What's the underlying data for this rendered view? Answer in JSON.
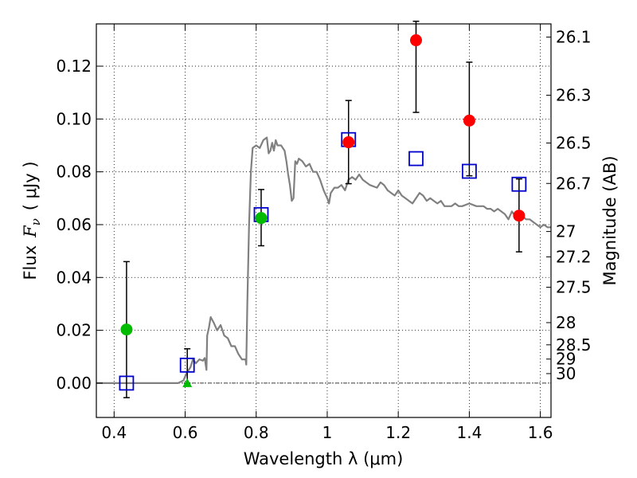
{
  "chart_data": {
    "type": "scatter",
    "title": "",
    "xlabel": "Wavelength  λ (μm)",
    "ylabel_left": {
      "prefix": "Flux",
      "symbol": "F",
      "subscript": "ν",
      "unit": "( μJy )"
    },
    "ylabel_right": "Magnitude (AB)",
    "xlim": [
      0.35,
      1.63
    ],
    "ylim": [
      -0.013,
      0.136
    ],
    "grid": true,
    "x_ticks": [
      0.4,
      0.6,
      0.8,
      1.0,
      1.2,
      1.4,
      1.6
    ],
    "x_tick_labels": [
      "0.4",
      "0.6",
      "0.8",
      "1",
      "1.2",
      "1.4",
      "1.6"
    ],
    "y_ticks": [
      0.0,
      0.02,
      0.04,
      0.06,
      0.08,
      0.1,
      0.12
    ],
    "y_tick_labels": [
      "0.00",
      "0.02",
      "0.04",
      "0.06",
      "0.08",
      "0.10",
      "0.12"
    ],
    "magnitude_ticks": [
      {
        "label": "26.1",
        "flux": 0.131
      },
      {
        "label": "26.3",
        "flux": 0.109
      },
      {
        "label": "26.5",
        "flux": 0.0909
      },
      {
        "label": "26.7",
        "flux": 0.0756
      },
      {
        "label": "27",
        "flux": 0.0574
      },
      {
        "label": "27.2",
        "flux": 0.0478
      },
      {
        "label": "27.5",
        "flux": 0.0363
      },
      {
        "label": "28",
        "flux": 0.0229
      },
      {
        "label": "28.5",
        "flux": 0.0145
      },
      {
        "label": "29",
        "flux": 0.0091
      },
      {
        "label": "30",
        "flux": 0.0036
      }
    ],
    "series": [
      {
        "name": "SED model",
        "kind": "line",
        "color": "#808080",
        "points": [
          [
            0.35,
            0.0
          ],
          [
            0.58,
            0.0
          ],
          [
            0.595,
            0.001
          ],
          [
            0.605,
            0.004
          ],
          [
            0.615,
            0.006
          ],
          [
            0.622,
            0.009
          ],
          [
            0.63,
            0.0075
          ],
          [
            0.64,
            0.009
          ],
          [
            0.65,
            0.0085
          ],
          [
            0.655,
            0.0095
          ],
          [
            0.66,
            0.005
          ],
          [
            0.662,
            0.018
          ],
          [
            0.667,
            0.021
          ],
          [
            0.672,
            0.025
          ],
          [
            0.68,
            0.023
          ],
          [
            0.69,
            0.02
          ],
          [
            0.7,
            0.022
          ],
          [
            0.71,
            0.018
          ],
          [
            0.72,
            0.017
          ],
          [
            0.73,
            0.014
          ],
          [
            0.74,
            0.014
          ],
          [
            0.75,
            0.011
          ],
          [
            0.76,
            0.009
          ],
          [
            0.77,
            0.009
          ],
          [
            0.772,
            0.007
          ],
          [
            0.775,
            0.03
          ],
          [
            0.78,
            0.06
          ],
          [
            0.785,
            0.08
          ],
          [
            0.79,
            0.089
          ],
          [
            0.8,
            0.09
          ],
          [
            0.81,
            0.089
          ],
          [
            0.82,
            0.092
          ],
          [
            0.83,
            0.093
          ],
          [
            0.835,
            0.087
          ],
          [
            0.84,
            0.088
          ],
          [
            0.845,
            0.091
          ],
          [
            0.85,
            0.088
          ],
          [
            0.855,
            0.092
          ],
          [
            0.86,
            0.09
          ],
          [
            0.87,
            0.09
          ],
          [
            0.88,
            0.088
          ],
          [
            0.885,
            0.084
          ],
          [
            0.89,
            0.079
          ],
          [
            0.895,
            0.075
          ],
          [
            0.9,
            0.069
          ],
          [
            0.905,
            0.07
          ],
          [
            0.91,
            0.084
          ],
          [
            0.915,
            0.083
          ],
          [
            0.92,
            0.085
          ],
          [
            0.93,
            0.084
          ],
          [
            0.94,
            0.082
          ],
          [
            0.95,
            0.083
          ],
          [
            0.96,
            0.08
          ],
          [
            0.97,
            0.08
          ],
          [
            0.98,
            0.077
          ],
          [
            0.99,
            0.073
          ],
          [
            1.0,
            0.07
          ],
          [
            1.005,
            0.068
          ],
          [
            1.01,
            0.072
          ],
          [
            1.02,
            0.074
          ],
          [
            1.03,
            0.074
          ],
          [
            1.04,
            0.075
          ],
          [
            1.05,
            0.073
          ],
          [
            1.06,
            0.077
          ],
          [
            1.07,
            0.078
          ],
          [
            1.08,
            0.077
          ],
          [
            1.09,
            0.079
          ],
          [
            1.1,
            0.077
          ],
          [
            1.12,
            0.075
          ],
          [
            1.14,
            0.074
          ],
          [
            1.15,
            0.076
          ],
          [
            1.16,
            0.075
          ],
          [
            1.17,
            0.073
          ],
          [
            1.18,
            0.072
          ],
          [
            1.19,
            0.071
          ],
          [
            1.2,
            0.073
          ],
          [
            1.21,
            0.071
          ],
          [
            1.22,
            0.07
          ],
          [
            1.23,
            0.069
          ],
          [
            1.24,
            0.068
          ],
          [
            1.25,
            0.07
          ],
          [
            1.26,
            0.072
          ],
          [
            1.27,
            0.071
          ],
          [
            1.28,
            0.069
          ],
          [
            1.29,
            0.07
          ],
          [
            1.3,
            0.069
          ],
          [
            1.31,
            0.068
          ],
          [
            1.32,
            0.069
          ],
          [
            1.33,
            0.067
          ],
          [
            1.34,
            0.067
          ],
          [
            1.35,
            0.067
          ],
          [
            1.36,
            0.068
          ],
          [
            1.37,
            0.067
          ],
          [
            1.38,
            0.067
          ],
          [
            1.4,
            0.068
          ],
          [
            1.42,
            0.067
          ],
          [
            1.44,
            0.067
          ],
          [
            1.45,
            0.066
          ],
          [
            1.46,
            0.066
          ],
          [
            1.47,
            0.065
          ],
          [
            1.48,
            0.066
          ],
          [
            1.49,
            0.065
          ],
          [
            1.5,
            0.064
          ],
          [
            1.51,
            0.062
          ],
          [
            1.52,
            0.065
          ],
          [
            1.53,
            0.063
          ],
          [
            1.54,
            0.063
          ],
          [
            1.55,
            0.063
          ],
          [
            1.56,
            0.062
          ],
          [
            1.57,
            0.062
          ],
          [
            1.58,
            0.061
          ],
          [
            1.59,
            0.06
          ],
          [
            1.6,
            0.059
          ],
          [
            1.61,
            0.06
          ],
          [
            1.62,
            0.059
          ],
          [
            1.63,
            0.059
          ]
        ]
      },
      {
        "name": "Model photometry",
        "kind": "marker",
        "marker": "open-square",
        "color": "#0000cc",
        "points": [
          [
            0.435,
            0.0
          ],
          [
            0.606,
            0.0068
          ],
          [
            0.814,
            0.0638
          ],
          [
            1.06,
            0.0922
          ],
          [
            1.25,
            0.085
          ],
          [
            1.4,
            0.0802
          ],
          [
            1.54,
            0.0753
          ]
        ]
      },
      {
        "name": "Observed (red)",
        "kind": "marker",
        "marker": "filled-circle",
        "color": "#ff0000",
        "points": [
          [
            1.06,
            0.0912
          ],
          [
            1.25,
            0.1298
          ],
          [
            1.4,
            0.0994
          ],
          [
            1.54,
            0.0634
          ]
        ],
        "errors": [
          [
            1.06,
            0.0755,
            0.107
          ],
          [
            1.25,
            0.1025,
            0.137
          ],
          [
            1.4,
            0.0785,
            0.1215
          ],
          [
            1.54,
            0.0497,
            0.0773
          ]
        ]
      },
      {
        "name": "Observed (green)",
        "kind": "marker",
        "marker": "filled-circle",
        "color": "#00bb00",
        "points": [
          [
            0.435,
            0.0203
          ],
          [
            0.814,
            0.0625
          ]
        ],
        "errors": [
          [
            0.435,
            -0.0055,
            0.046
          ],
          [
            0.814,
            0.052,
            0.0733
          ]
        ]
      },
      {
        "name": "Upper limit",
        "kind": "marker",
        "marker": "filled-triangle",
        "color": "#00bb00",
        "points": [
          [
            0.606,
            0.0
          ]
        ],
        "errors": [
          [
            0.606,
            0.0,
            0.013
          ]
        ]
      }
    ]
  }
}
